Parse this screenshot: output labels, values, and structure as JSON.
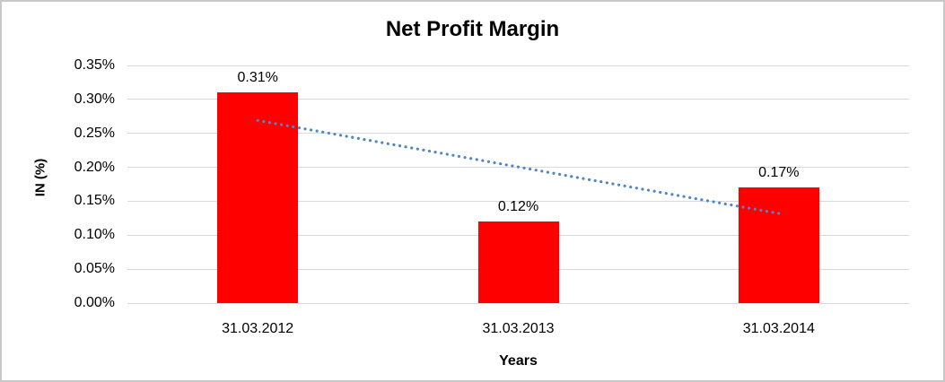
{
  "window": {
    "background_color": "#ffffff",
    "border_color": "#c8c8c8"
  },
  "chart": {
    "title": "Net Profit Margin",
    "y_axis_title": "IN (%)",
    "x_axis_title": "Years"
  },
  "chart_data": {
    "type": "bar",
    "title": "Net Profit Margin",
    "xlabel": "Years",
    "ylabel": "IN (%)",
    "categories": [
      "31.03.2012",
      "31.03.2013",
      "31.03.2014"
    ],
    "values": [
      0.31,
      0.12,
      0.17
    ],
    "data_labels": [
      "0.31%",
      "0.12%",
      "0.17%"
    ],
    "ylim": [
      0,
      0.35
    ],
    "y_tick_step": 0.05,
    "y_ticks": [
      {
        "value": 0.35,
        "label": "0.35%"
      },
      {
        "value": 0.3,
        "label": "0.30%"
      },
      {
        "value": 0.25,
        "label": "0.25%"
      },
      {
        "value": 0.2,
        "label": "0.20%"
      },
      {
        "value": 0.15,
        "label": "0.15%"
      },
      {
        "value": 0.1,
        "label": "0.10%"
      },
      {
        "value": 0.05,
        "label": "0.05%"
      },
      {
        "value": 0.0,
        "label": "0.00%"
      }
    ],
    "grid": true,
    "legend": "none",
    "bar_color": "#ff0000",
    "gridline_color": "#d9d9d9",
    "trendline": {
      "type": "linear",
      "style": "dotted",
      "color": "#4e86c8",
      "start": {
        "category_index": 0,
        "value": 0.269
      },
      "end": {
        "category_index": 2,
        "value": 0.132
      }
    }
  }
}
